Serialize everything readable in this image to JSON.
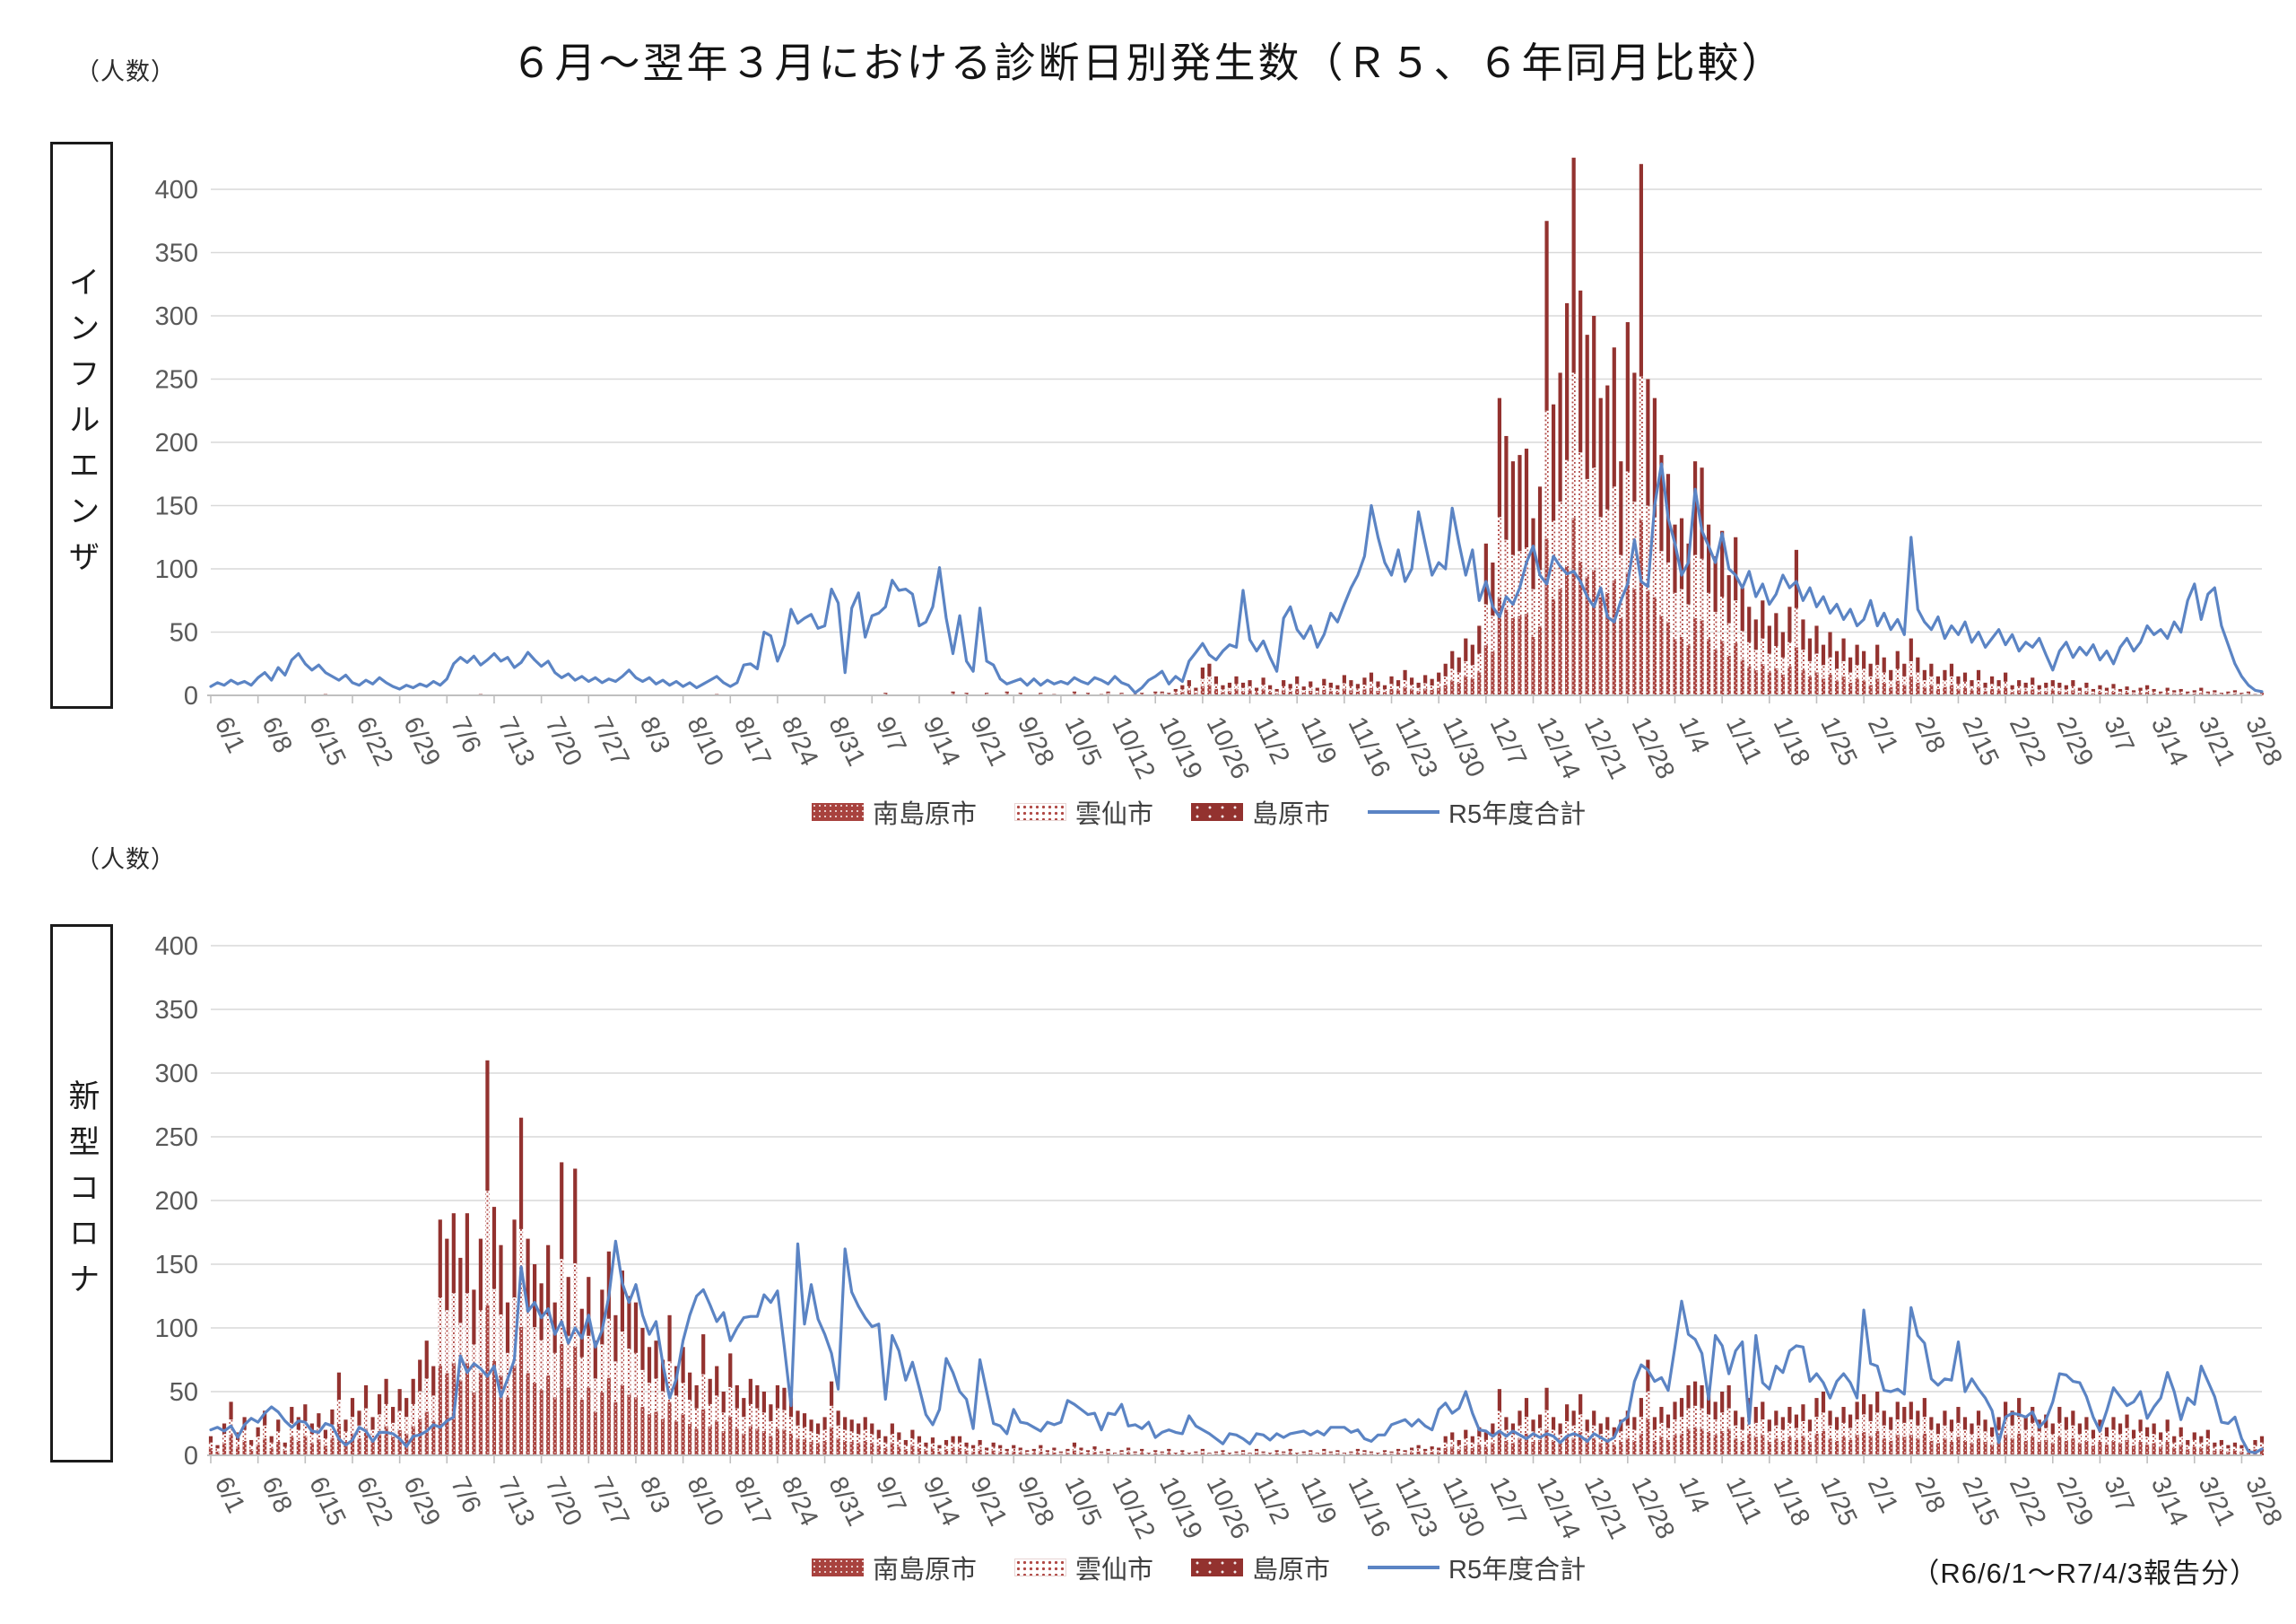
{
  "title": "６月～翌年３月における診断日別発生数（Ｒ５、６年同月比較）",
  "unit_label": "（人数）",
  "footnote": "（R6/6/1～R7/4/3報告分）",
  "legend": [
    "南島原市",
    "雲仙市",
    "島原市",
    "R5年度合計"
  ],
  "colors": {
    "bar_red": "#A8423E",
    "bar_red_light": "#B04844",
    "bar_red_dark": "#93322F",
    "r5_line": "#5B84C4",
    "grid": "#D9D9D9",
    "axis": "#BFBFBF",
    "tick_text": "#595959"
  },
  "chart_data": [
    {
      "type": "bar",
      "name": "influenza",
      "row_label": "インフルエンザ",
      "note": "daily stacked bars (R6 by city) + R5 total line, 6/1 - 3/31",
      "ylim": [
        0,
        400
      ],
      "y_ticks": [
        0,
        50,
        100,
        150,
        200,
        250,
        300,
        350,
        400
      ],
      "x_labels": [
        "6/1",
        "6/8",
        "6/15",
        "6/22",
        "6/29",
        "7/6",
        "7/13",
        "7/20",
        "7/27",
        "8/3",
        "8/10",
        "8/17",
        "8/24",
        "8/31",
        "9/7",
        "9/14",
        "9/21",
        "9/28",
        "10/5",
        "10/12",
        "10/19",
        "10/26",
        "11/2",
        "11/9",
        "11/16",
        "11/23",
        "11/30",
        "12/7",
        "12/14",
        "12/21",
        "12/28",
        "1/4",
        "1/11",
        "1/18",
        "1/25",
        "2/1",
        "2/8",
        "2/15",
        "2/22",
        "2/29",
        "3/7",
        "3/14",
        "3/21",
        "3/28"
      ],
      "city_split": [
        0.33,
        0.27,
        0.4
      ],
      "bar_total_daily": [
        0,
        0,
        0,
        0,
        0,
        0,
        0,
        0,
        0,
        0,
        0,
        0,
        0,
        0,
        0,
        0,
        0,
        1,
        0,
        0,
        0,
        0,
        0,
        0,
        0,
        0,
        0,
        0,
        0,
        0,
        0,
        0,
        0,
        0,
        0,
        0,
        0,
        0,
        0,
        0,
        1,
        0,
        0,
        0,
        0,
        0,
        0,
        0,
        0,
        0,
        0,
        0,
        0,
        0,
        0,
        0,
        0,
        0,
        0,
        0,
        0,
        0,
        0,
        0,
        0,
        0,
        0,
        0,
        0,
        0,
        0,
        0,
        0,
        0,
        0,
        1,
        0,
        0,
        0,
        0,
        0,
        0,
        0,
        0,
        0,
        0,
        0,
        0,
        0,
        0,
        0,
        0,
        0,
        0,
        0,
        0,
        0,
        0,
        0,
        0,
        2,
        0,
        0,
        0,
        0,
        0,
        0,
        0,
        0,
        0,
        3,
        0,
        2,
        0,
        0,
        2,
        0,
        0,
        3,
        0,
        2,
        0,
        0,
        2,
        0,
        1,
        0,
        0,
        3,
        0,
        2,
        0,
        1,
        3,
        0,
        2,
        0,
        1,
        2,
        0,
        3,
        3,
        2,
        5,
        8,
        12,
        6,
        22,
        25,
        15,
        8,
        10,
        15,
        10,
        12,
        6,
        14,
        8,
        5,
        12,
        9,
        15,
        7,
        11,
        6,
        13,
        10,
        8,
        16,
        12,
        9,
        14,
        18,
        11,
        8,
        15,
        12,
        20,
        14,
        10,
        16,
        13,
        18,
        25,
        35,
        30,
        45,
        40,
        55,
        120,
        105,
        235,
        205,
        185,
        190,
        195,
        140,
        165,
        375,
        230,
        255,
        310,
        425,
        320,
        285,
        300,
        235,
        245,
        275,
        185,
        295,
        255,
        420,
        250,
        235,
        190,
        175,
        135,
        140,
        120,
        185,
        180,
        135,
        110,
        130,
        95,
        125,
        85,
        70,
        60,
        75,
        55,
        65,
        50,
        70,
        115,
        60,
        45,
        55,
        40,
        50,
        35,
        45,
        30,
        40,
        35,
        25,
        40,
        30,
        20,
        35,
        25,
        45,
        30,
        20,
        25,
        15,
        20,
        25,
        15,
        18,
        12,
        20,
        10,
        15,
        12,
        18,
        8,
        12,
        10,
        14,
        8,
        10,
        12,
        10,
        8,
        12,
        6,
        10,
        5,
        8,
        6,
        9,
        5,
        7,
        4,
        6,
        8,
        5,
        3,
        6,
        4,
        5,
        3,
        4,
        6,
        3,
        4,
        2,
        3,
        4,
        2,
        3,
        1,
        2
      ],
      "r5_line_daily": [
        7,
        10,
        8,
        12,
        9,
        11,
        8,
        14,
        18,
        12,
        22,
        16,
        28,
        33,
        25,
        20,
        24,
        18,
        15,
        12,
        16,
        10,
        8,
        12,
        9,
        14,
        10,
        7,
        5,
        8,
        6,
        9,
        7,
        11,
        8,
        13,
        25,
        30,
        26,
        31,
        24,
        28,
        33,
        27,
        30,
        22,
        26,
        34,
        28,
        23,
        27,
        18,
        14,
        17,
        12,
        15,
        11,
        14,
        10,
        13,
        11,
        15,
        20,
        14,
        11,
        14,
        9,
        12,
        8,
        11,
        7,
        10,
        6,
        9,
        12,
        15,
        10,
        7,
        10,
        24,
        25,
        21,
        50,
        47,
        27,
        40,
        68,
        57,
        61,
        64,
        53,
        55,
        84,
        73,
        18,
        69,
        81,
        46,
        63,
        65,
        70,
        91,
        83,
        84,
        80,
        55,
        58,
        70,
        101,
        61,
        33,
        63,
        27,
        19,
        69,
        27,
        24,
        13,
        9,
        11,
        13,
        8,
        13,
        8,
        12,
        9,
        11,
        9,
        14,
        11,
        9,
        14,
        12,
        9,
        15,
        10,
        8,
        2,
        6,
        12,
        15,
        19,
        9,
        15,
        11,
        27,
        34,
        41,
        32,
        28,
        35,
        40,
        38,
        83,
        44,
        35,
        43,
        30,
        19,
        61,
        70,
        52,
        45,
        55,
        38,
        48,
        65,
        58,
        72,
        85,
        95,
        110,
        150,
        125,
        105,
        95,
        115,
        90,
        100,
        145,
        120,
        95,
        105,
        100,
        148,
        120,
        95,
        115,
        75,
        90,
        70,
        62,
        78,
        72,
        85,
        105,
        118,
        95,
        88,
        110,
        102,
        96,
        98,
        90,
        78,
        70,
        85,
        62,
        58,
        75,
        88,
        123,
        90,
        86,
        150,
        183,
        140,
        120,
        95,
        105,
        163,
        130,
        118,
        105,
        128,
        100,
        95,
        85,
        98,
        78,
        88,
        72,
        80,
        95,
        85,
        90,
        75,
        85,
        70,
        78,
        65,
        72,
        60,
        68,
        55,
        60,
        75,
        55,
        65,
        52,
        60,
        48,
        125,
        68,
        58,
        52,
        62,
        45,
        55,
        48,
        58,
        42,
        50,
        38,
        45,
        52,
        40,
        48,
        35,
        42,
        38,
        45,
        32,
        20,
        35,
        42,
        30,
        38,
        32,
        40,
        28,
        35,
        25,
        38,
        45,
        35,
        42,
        55,
        48,
        52,
        45,
        58,
        50,
        75,
        88,
        60,
        80,
        85,
        55,
        40,
        25,
        15,
        8,
        4,
        3
      ]
    },
    {
      "type": "bar",
      "name": "covid19",
      "row_label": "新型コロナ",
      "note": "daily stacked bars (R6 by city) + R5 total line, 6/1 - 3/31",
      "ylim": [
        0,
        400
      ],
      "y_ticks": [
        0,
        50,
        100,
        150,
        200,
        250,
        300,
        350,
        400
      ],
      "x_labels": [
        "6/1",
        "6/8",
        "6/15",
        "6/22",
        "6/29",
        "7/6",
        "7/13",
        "7/20",
        "7/27",
        "8/3",
        "8/10",
        "8/17",
        "8/24",
        "8/31",
        "9/7",
        "9/14",
        "9/21",
        "9/28",
        "10/5",
        "10/12",
        "10/19",
        "10/26",
        "11/2",
        "11/9",
        "11/16",
        "11/23",
        "11/30",
        "12/7",
        "12/14",
        "12/21",
        "12/28",
        "1/4",
        "1/11",
        "1/18",
        "1/25",
        "2/1",
        "2/8",
        "2/15",
        "2/22",
        "2/29",
        "3/7",
        "3/14",
        "3/21",
        "3/28"
      ],
      "city_split": [
        0.38,
        0.29,
        0.33
      ],
      "bar_total_daily": [
        15,
        8,
        25,
        42,
        18,
        30,
        12,
        22,
        35,
        15,
        28,
        10,
        38,
        30,
        40,
        25,
        33,
        20,
        36,
        65,
        28,
        45,
        35,
        55,
        30,
        48,
        60,
        38,
        52,
        45,
        60,
        75,
        90,
        70,
        185,
        170,
        190,
        155,
        190,
        130,
        170,
        310,
        195,
        165,
        120,
        185,
        265,
        170,
        150,
        135,
        165,
        120,
        230,
        140,
        225,
        115,
        140,
        90,
        130,
        160,
        110,
        145,
        125,
        120,
        100,
        85,
        90,
        75,
        110,
        70,
        85,
        65,
        55,
        95,
        60,
        70,
        50,
        80,
        55,
        45,
        60,
        55,
        50,
        40,
        55,
        53,
        45,
        35,
        33,
        28,
        25,
        30,
        58,
        35,
        30,
        28,
        25,
        30,
        25,
        20,
        15,
        25,
        18,
        12,
        20,
        15,
        10,
        14,
        8,
        12,
        15,
        15,
        10,
        8,
        12,
        6,
        10,
        8,
        5,
        8,
        6,
        4,
        5,
        8,
        4,
        6,
        3,
        5,
        10,
        6,
        4,
        7,
        3,
        5,
        2,
        4,
        6,
        3,
        5,
        2,
        4,
        3,
        5,
        2,
        4,
        2,
        3,
        5,
        2,
        3,
        4,
        2,
        3,
        4,
        2,
        5,
        3,
        2,
        4,
        3,
        5,
        2,
        3,
        4,
        2,
        5,
        3,
        4,
        2,
        3,
        5,
        4,
        3,
        2,
        4,
        3,
        5,
        4,
        6,
        8,
        5,
        7,
        6,
        15,
        18,
        12,
        20,
        15,
        22,
        18,
        25,
        52,
        30,
        25,
        35,
        45,
        28,
        32,
        53,
        30,
        25,
        40,
        35,
        48,
        28,
        35,
        25,
        30,
        22,
        28,
        35,
        30,
        45,
        75,
        30,
        38,
        32,
        42,
        45,
        55,
        58,
        55,
        48,
        42,
        50,
        55,
        35,
        30,
        45,
        38,
        42,
        28,
        35,
        30,
        38,
        32,
        40,
        28,
        45,
        50,
        35,
        30,
        38,
        32,
        42,
        48,
        40,
        50,
        35,
        30,
        42,
        38,
        42,
        35,
        45,
        30,
        25,
        35,
        28,
        38,
        30,
        25,
        35,
        28,
        22,
        30,
        42,
        35,
        45,
        30,
        38,
        28,
        32,
        25,
        38,
        30,
        35,
        25,
        30,
        20,
        28,
        22,
        30,
        25,
        32,
        20,
        28,
        22,
        25,
        18,
        28,
        15,
        22,
        12,
        18,
        15,
        20,
        10,
        12,
        8,
        10,
        8,
        5,
        12,
        15
      ],
      "r5_line_daily": [
        20,
        22,
        19,
        23,
        14,
        24,
        29,
        26,
        33,
        38,
        34,
        27,
        22,
        27,
        26,
        19,
        18,
        25,
        23,
        13,
        8,
        12,
        22,
        19,
        11,
        18,
        18,
        17,
        13,
        7,
        15,
        16,
        19,
        24,
        22,
        27,
        30,
        78,
        65,
        72,
        68,
        62,
        70,
        46,
        60,
        75,
        148,
        113,
        120,
        108,
        115,
        95,
        105,
        88,
        100,
        92,
        110,
        85,
        98,
        125,
        168,
        135,
        120,
        134,
        110,
        95,
        105,
        72,
        45,
        60,
        90,
        110,
        125,
        130,
        118,
        105,
        112,
        90,
        100,
        108,
        109,
        109,
        126,
        120,
        129,
        85,
        39,
        166,
        103,
        134,
        107,
        95,
        80,
        52,
        162,
        128,
        117,
        108,
        101,
        103,
        44,
        94,
        82,
        59,
        73,
        53,
        32,
        24,
        36,
        76,
        65,
        50,
        44,
        21,
        75,
        50,
        25,
        23,
        17,
        36,
        26,
        25,
        22,
        19,
        26,
        24,
        26,
        43,
        40,
        36,
        32,
        33,
        20,
        33,
        32,
        40,
        23,
        24,
        21,
        26,
        14,
        18,
        20,
        18,
        17,
        31,
        23,
        20,
        17,
        13,
        9,
        17,
        16,
        13,
        9,
        17,
        16,
        12,
        17,
        14,
        17,
        18,
        19,
        16,
        19,
        16,
        22,
        22,
        22,
        18,
        20,
        13,
        11,
        16,
        16,
        24,
        26,
        28,
        23,
        28,
        23,
        20,
        36,
        41,
        33,
        37,
        50,
        33,
        20,
        19,
        15,
        19,
        15,
        19,
        16,
        13,
        17,
        14,
        17,
        15,
        10,
        15,
        17,
        15,
        11,
        17,
        14,
        11,
        14,
        26,
        30,
        58,
        71,
        67,
        58,
        61,
        51,
        85,
        121,
        95,
        91,
        80,
        44,
        94,
        86,
        64,
        82,
        89,
        25,
        94,
        57,
        52,
        70,
        65,
        82,
        86,
        85,
        58,
        64,
        57,
        45,
        58,
        64,
        57,
        45,
        114,
        72,
        70,
        51,
        50,
        52,
        48,
        116,
        94,
        88,
        60,
        55,
        60,
        59,
        89,
        50,
        60,
        52,
        45,
        35,
        10,
        30,
        33,
        32,
        30,
        34,
        22,
        28,
        42,
        64,
        63,
        58,
        57,
        46,
        30,
        19,
        35,
        53,
        46,
        39,
        42,
        50,
        29,
        38,
        45,
        65,
        50,
        28,
        45,
        40,
        70,
        58,
        46,
        26,
        25,
        30,
        13,
        3,
        2,
        5
      ]
    }
  ]
}
